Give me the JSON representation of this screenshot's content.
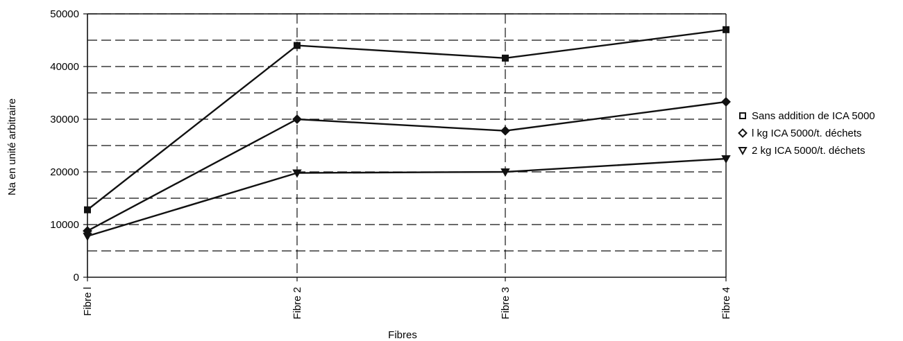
{
  "chart_data": {
    "type": "line",
    "title": "",
    "xlabel": "Fibres",
    "ylabel": "Na en unité arbitraire",
    "categories": [
      "Fibre l",
      "Fibre 2",
      "Fibre 3",
      "Fibre 4"
    ],
    "ylim": [
      0,
      50000
    ],
    "yticks": [
      0,
      10000,
      20000,
      30000,
      40000,
      50000
    ],
    "grid": true,
    "legend_position": "right",
    "series": [
      {
        "name": "Sans addition de ICA 5000",
        "marker": "square",
        "values": [
          12800,
          44000,
          41600,
          47000
        ]
      },
      {
        "name": "l kg ICA 5000/t. déchets",
        "marker": "diamond",
        "values": [
          8800,
          30000,
          27800,
          33300
        ]
      },
      {
        "name": "2 kg ICA 5000/t. déchets",
        "marker": "triangle",
        "values": [
          7800,
          19800,
          20000,
          22500
        ]
      }
    ]
  }
}
